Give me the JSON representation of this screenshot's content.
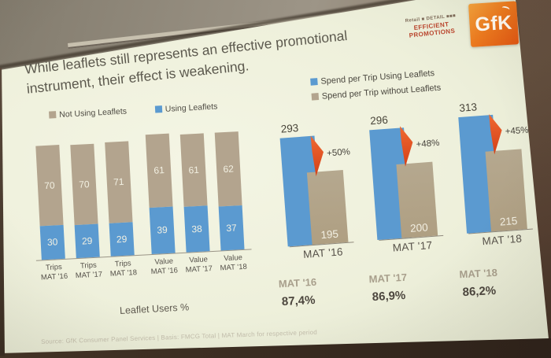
{
  "brand": {
    "tagline": "Retail ■ DETAIL ■■■",
    "name": "EFFICIENT PROMOTIONS"
  },
  "logo": {
    "text": "GfK"
  },
  "title": {
    "line1": "While leaflets still represents an effective promotional",
    "line2": "instrument, their effect is weakening."
  },
  "source": "Source: GfK Consumer Panel Services | Basis: FMCG Total | MAT March for respective period",
  "colors": {
    "leaflet_blue": "#5b9ad0",
    "no_leaflet_tan": "#b3a48e",
    "arrow_orange": "#e2551f",
    "brand_red": "#b9442c",
    "logo_orange": "#ec7b1f",
    "slide_background": "#eef0db"
  },
  "left_chart": {
    "xlabels": [
      {
        "l1": "Trips",
        "l2": "MAT '16"
      },
      {
        "l1": "Trips",
        "l2": "MAT '17"
      },
      {
        "l1": "Trips",
        "l2": "MAT '18"
      },
      {
        "l1": "Value",
        "l2": "MAT '16"
      },
      {
        "l1": "Value",
        "l2": "MAT '17"
      },
      {
        "l1": "Value",
        "l2": "MAT '18"
      }
    ]
  },
  "chart_data": [
    {
      "type": "bar",
      "subtype": "stacked-100-percent",
      "categories": [
        "Trips MAT '16",
        "Trips MAT '17",
        "Trips MAT '18",
        "Value MAT '16",
        "Value MAT '17",
        "Value MAT '18"
      ],
      "series": [
        {
          "name": "Using Leaflets",
          "color": "#5b9ad0",
          "values": [
            30,
            29,
            29,
            39,
            38,
            37
          ]
        },
        {
          "name": "Not Using Leaflets",
          "color": "#b3a48e",
          "values": [
            70,
            70,
            71,
            61,
            61,
            62
          ]
        }
      ],
      "unit": "%",
      "ylim": [
        0,
        100
      ],
      "grid": false,
      "legend_position": "top"
    },
    {
      "type": "bar",
      "subtype": "grouped-overlapping",
      "categories": [
        "MAT '16",
        "MAT '17",
        "MAT '18"
      ],
      "series": [
        {
          "name": "Spend per Trip Using Leaflets",
          "color": "#5b9ad0",
          "values": [
            293,
            296,
            313
          ]
        },
        {
          "name": "Spend per Trip without Leaflets",
          "color": "#b3a48e",
          "values": [
            195,
            200,
            215
          ]
        }
      ],
      "annotations": [
        "+50%",
        "+48%",
        "+45%"
      ],
      "grid": false,
      "legend_position": "top-right"
    },
    {
      "type": "table",
      "row_label": "Leaflet Users %",
      "categories": [
        "MAT '16",
        "MAT '17",
        "MAT '18"
      ],
      "values": [
        "87,4%",
        "86,9%",
        "86,2%"
      ]
    }
  ]
}
